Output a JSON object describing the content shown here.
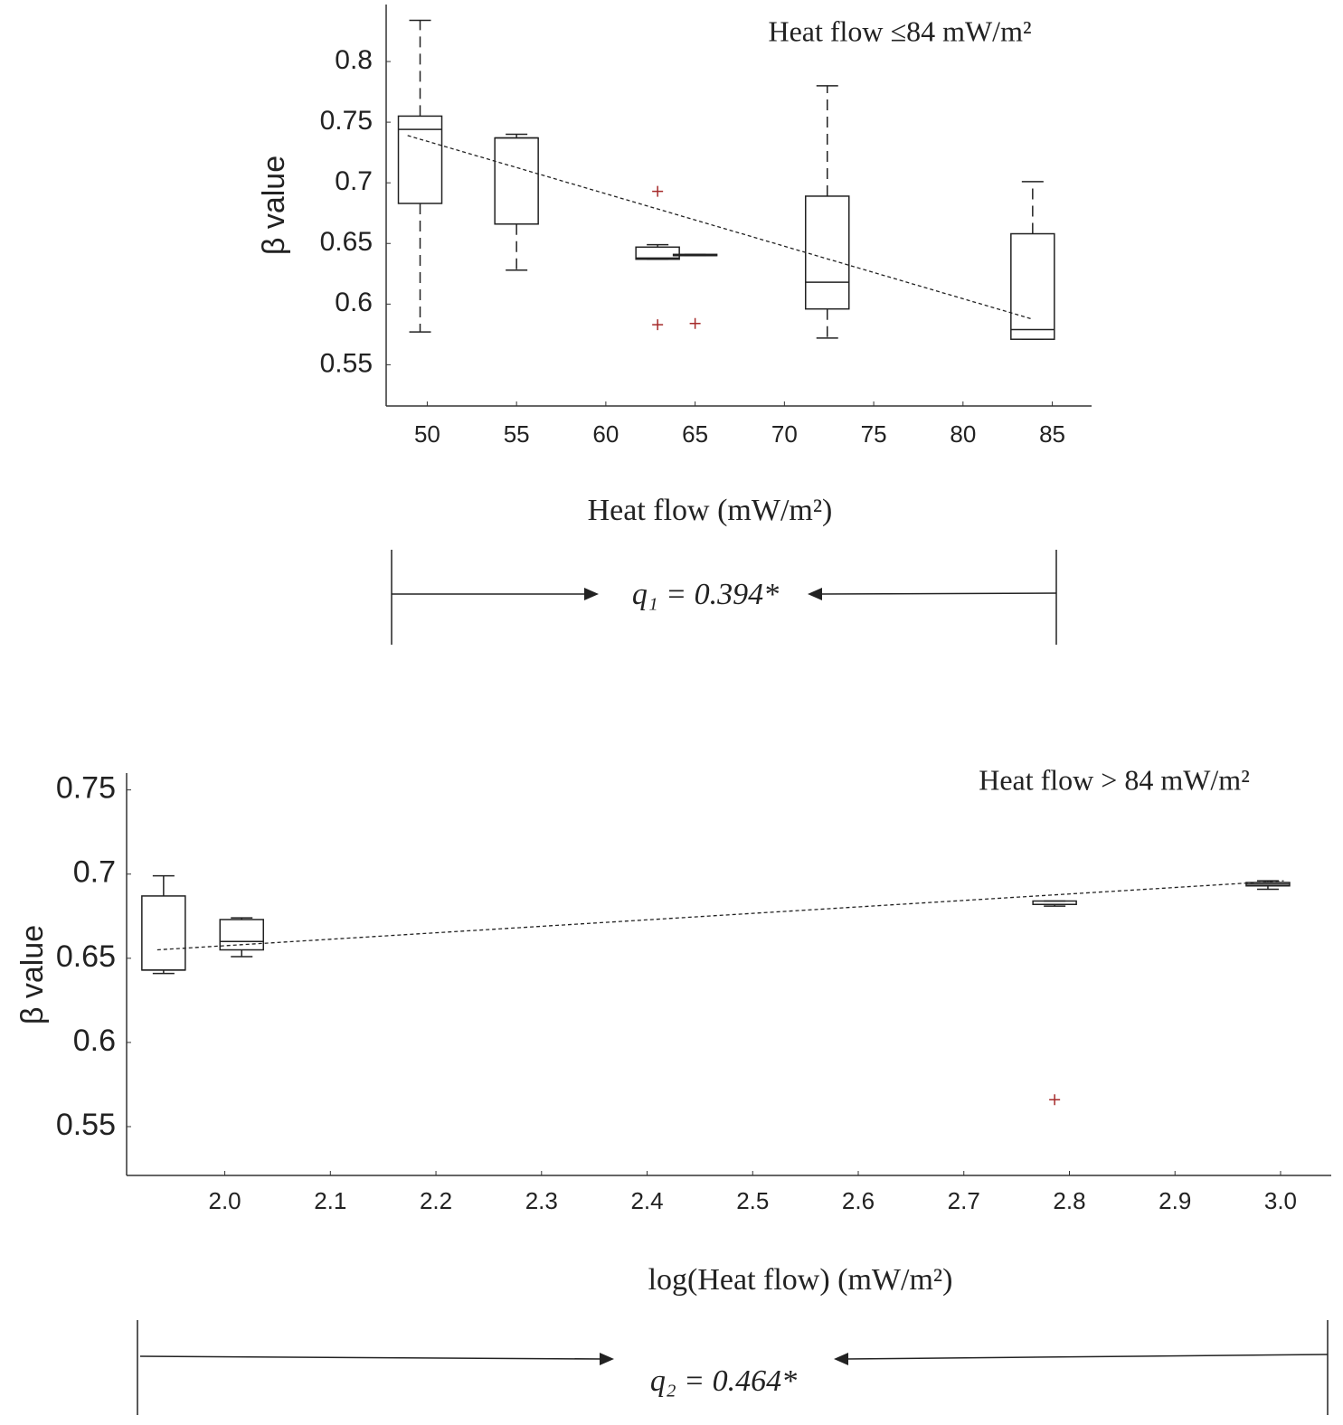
{
  "chart_data": [
    {
      "type": "box",
      "annotation": "Heat flow ≤84 mW/m²",
      "x_label": "Heat flow (mW/m²)",
      "y_label": "β value",
      "statistic": "q₁ = 0.394*",
      "xlim": [
        47.7,
        87.2
      ],
      "ylim": [
        0.516,
        0.847
      ],
      "xticks": [
        50,
        55,
        60,
        65,
        70,
        75,
        80,
        85
      ],
      "yticks": [
        0.55,
        0.6,
        0.65,
        0.7,
        0.75,
        0.8
      ],
      "box_color": "#222222",
      "outlier_color": "#a52a2a",
      "whisker_style": "dashed",
      "boxes": [
        {
          "x": 49.6,
          "whisker_low": 0.577,
          "q1": 0.683,
          "median": 0.744,
          "q3": 0.755,
          "whisker_high": 0.834
        },
        {
          "x": 55.0,
          "whisker_low": 0.628,
          "q1": 0.666,
          "median": 0.737,
          "q3": 0.737,
          "whisker_high": 0.74
        },
        {
          "x": 62.9,
          "whisker_low": 0.637,
          "q1": 0.637,
          "median": 0.638,
          "q3": 0.647,
          "whisker_high": 0.649
        },
        {
          "x": 65.0,
          "whisker_low": 0.64,
          "q1": 0.64,
          "median": 0.64,
          "q3": 0.641,
          "whisker_high": 0.641
        },
        {
          "x": 72.4,
          "whisker_low": 0.572,
          "q1": 0.596,
          "median": 0.618,
          "q3": 0.689,
          "whisker_high": 0.78
        },
        {
          "x": 83.9,
          "whisker_low": 0.571,
          "q1": 0.571,
          "median": 0.579,
          "q3": 0.658,
          "whisker_high": 0.701
        }
      ],
      "outliers": [
        {
          "x": 62.9,
          "y": 0.693
        },
        {
          "x": 62.9,
          "y": 0.583
        },
        {
          "x": 65.0,
          "y": 0.584
        }
      ],
      "trend_line": {
        "x": [
          48.9,
          83.8
        ],
        "y": [
          0.739,
          0.588
        ]
      }
    },
    {
      "type": "box",
      "annotation": "Heat flow > 84 mW/m²",
      "x_label": "log(Heat flow) (mW/m²)",
      "y_label": "β value",
      "statistic": "q₂ = 0.464*",
      "xlim": [
        1.907,
        3.048
      ],
      "ylim": [
        0.521,
        0.76
      ],
      "xticks": [
        {
          "value": 2,
          "label": "2.0"
        },
        2.1,
        2.2,
        2.3,
        2.4,
        2.5,
        2.6,
        2.7,
        2.8,
        2.9,
        {
          "value": 3,
          "label": "3.0"
        }
      ],
      "yticks": [
        0.55,
        0.6,
        0.65,
        0.7,
        0.75
      ],
      "box_color": "#222222",
      "outlier_color": "#a52a2a",
      "whisker_style": "solid",
      "boxes": [
        {
          "x": 1.942,
          "whisker_low": 0.641,
          "q1": 0.643,
          "median": 0.643,
          "q3": 0.687,
          "whisker_high": 0.699
        },
        {
          "x": 2.016,
          "whisker_low": 0.651,
          "q1": 0.655,
          "median": 0.66,
          "q3": 0.673,
          "whisker_high": 0.674
        },
        {
          "x": 2.786,
          "whisker_low": 0.681,
          "q1": 0.682,
          "median": 0.682,
          "q3": 0.684,
          "whisker_high": 0.684
        },
        {
          "x": 2.988,
          "whisker_low": 0.691,
          "q1": 0.693,
          "median": 0.694,
          "q3": 0.695,
          "whisker_high": 0.696
        }
      ],
      "outliers": [
        {
          "x": 2.786,
          "y": 0.566
        }
      ],
      "trend_line": {
        "x": [
          1.936,
          3.003
        ],
        "y": [
          0.655,
          0.696
        ]
      }
    }
  ]
}
